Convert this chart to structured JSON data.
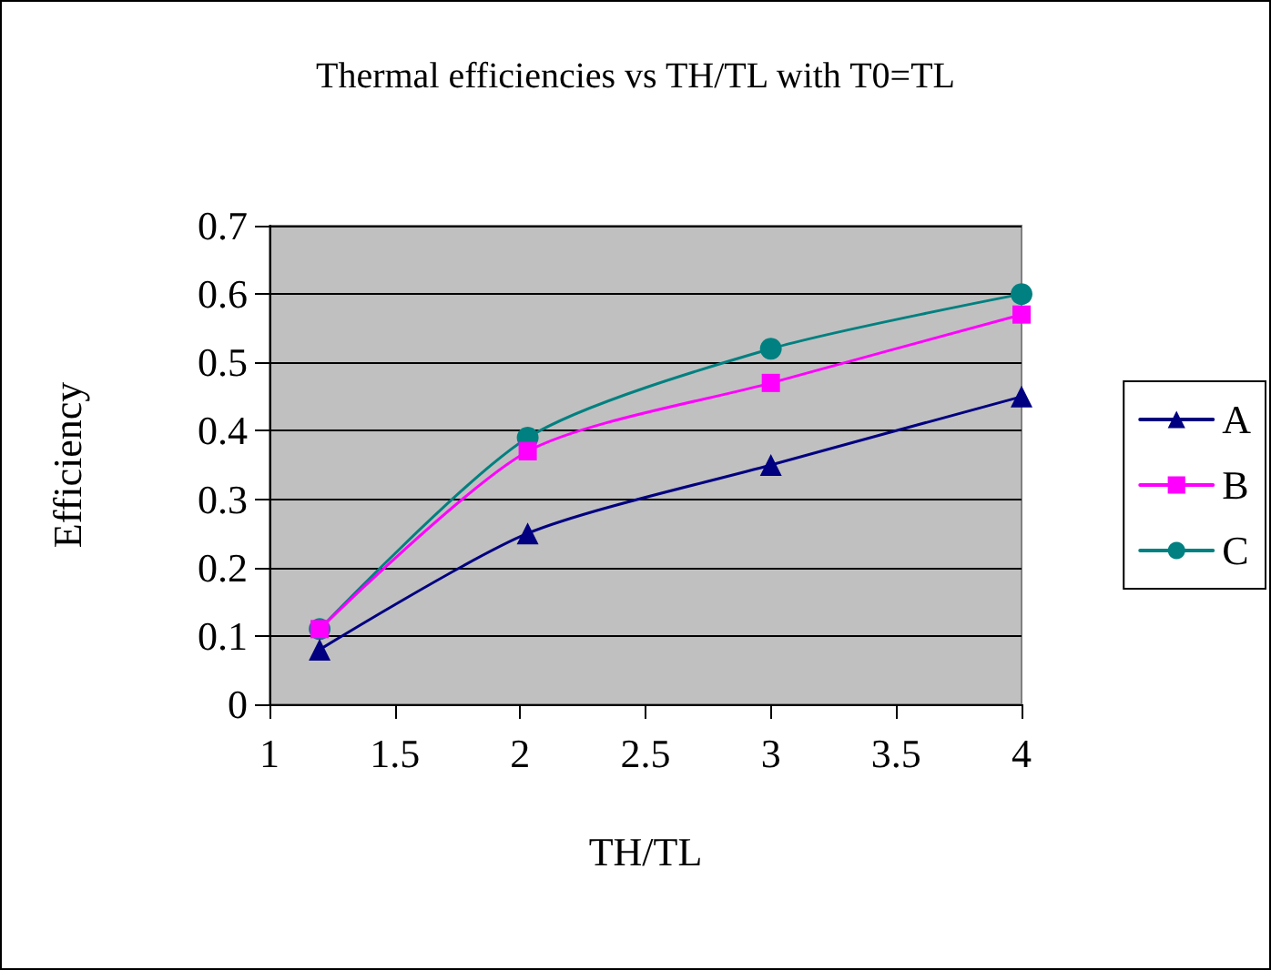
{
  "chart_data": {
    "type": "line",
    "title": "Thermal efficiencies vs TH/TL with T0=TL",
    "xlabel": "TH/TL",
    "ylabel": "Efficiency",
    "xlim": [
      1,
      4
    ],
    "xticks": [
      1,
      1.5,
      2,
      2.5,
      3,
      3.5,
      4
    ],
    "ylim": [
      0,
      0.7
    ],
    "yticks": [
      0,
      0.1,
      0.2,
      0.3,
      0.4,
      0.5,
      0.6,
      0.7
    ],
    "grid": "y",
    "legend": "right",
    "series": [
      {
        "name": "A",
        "color": "#000080",
        "marker": "triangle",
        "x": [
          1.2,
          2.03,
          3,
          4
        ],
        "values": [
          0.08,
          0.25,
          0.35,
          0.45
        ]
      },
      {
        "name": "B",
        "color": "#ff00ff",
        "marker": "square",
        "x": [
          1.2,
          2.03,
          3,
          4
        ],
        "values": [
          0.11,
          0.37,
          0.47,
          0.57
        ]
      },
      {
        "name": "C",
        "color": "#008080",
        "marker": "circle",
        "x": [
          1.2,
          2.03,
          3,
          4
        ],
        "values": [
          0.11,
          0.39,
          0.52,
          0.6
        ]
      }
    ]
  }
}
